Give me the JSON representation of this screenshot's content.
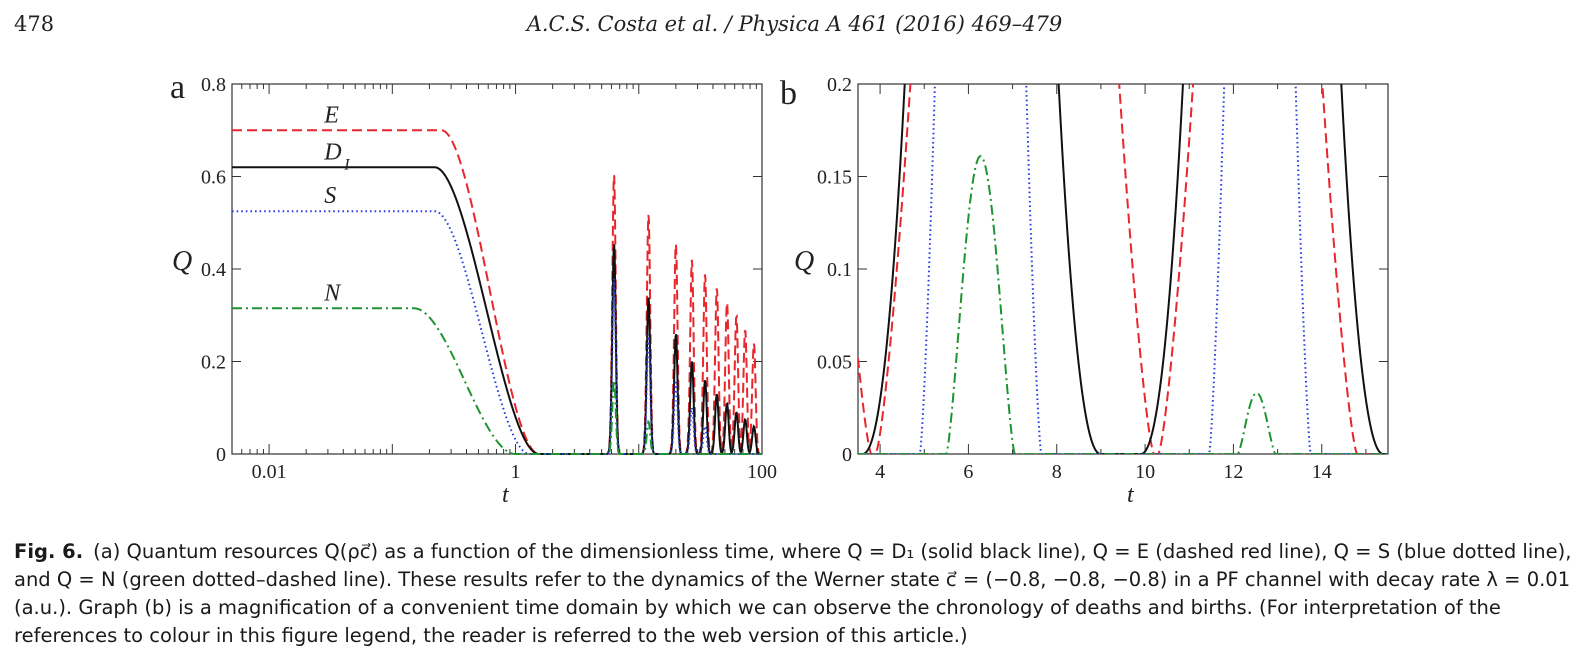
{
  "header": {
    "page_number": "478",
    "running_head": "A.C.S. Costa et al. / Physica A 461 (2016) 469–479"
  },
  "chart_data": [
    {
      "panel": "a",
      "type": "line",
      "xscale": "log",
      "xlabel": "t",
      "ylabel": "Q",
      "xlim": [
        0.005,
        100
      ],
      "ylim": [
        0,
        0.8
      ],
      "xticks": [
        0.01,
        1,
        100
      ],
      "xtick_labels": [
        "0.01",
        "1",
        "100"
      ],
      "yticks": [
        0,
        0.2,
        0.4,
        0.6,
        0.8
      ],
      "ytick_labels": [
        "0",
        "0.2",
        "0.4",
        "0.6",
        "0.8"
      ],
      "curve_labels": [
        "E",
        "D",
        "S",
        "N"
      ],
      "curve_label_subscript": "I",
      "series": [
        {
          "name": "E",
          "color": "#e8262b",
          "dash": "dashed",
          "plateau": 0.7,
          "peaks": [
            [
              6.3,
              0.605
            ],
            [
              12.0,
              0.52
            ],
            [
              20.0,
              0.455
            ],
            [
              27.0,
              0.42
            ],
            [
              34.5,
              0.39
            ],
            [
              43,
              0.36
            ],
            [
              52,
              0.33
            ],
            [
              62,
              0.3
            ],
            [
              73,
              0.27
            ],
            [
              86,
              0.24
            ]
          ]
        },
        {
          "name": "D1",
          "color": "#111111",
          "dash": "solid",
          "plateau": 0.62,
          "peaks": [
            [
              6.3,
              0.455
            ],
            [
              12.0,
              0.34
            ],
            [
              20.0,
              0.26
            ],
            [
              27.0,
              0.2
            ],
            [
              34.5,
              0.16
            ],
            [
              43,
              0.13
            ],
            [
              52,
              0.11
            ],
            [
              62,
              0.09
            ],
            [
              73,
              0.075
            ],
            [
              86,
              0.06
            ]
          ]
        },
        {
          "name": "S",
          "color": "#2b3ee0",
          "dash": "dotted",
          "plateau": 0.525,
          "peaks": [
            [
              6.3,
              0.38
            ],
            [
              12.0,
              0.26
            ],
            [
              20.0,
              0.16
            ],
            [
              27.0,
              0.1
            ],
            [
              34.5,
              0.06
            ]
          ]
        },
        {
          "name": "N",
          "color": "#1e9430",
          "dash": "dashdot",
          "plateau": 0.315,
          "peaks": [
            [
              6.3,
              0.16
            ],
            [
              12.0,
              0.07
            ]
          ]
        }
      ]
    },
    {
      "panel": "b",
      "type": "line",
      "xlabel": "t",
      "ylabel": "Q",
      "xlim": [
        3.5,
        15.5
      ],
      "ylim": [
        0,
        0.2
      ],
      "xticks": [
        4,
        6,
        8,
        10,
        12,
        14
      ],
      "xtick_labels": [
        "4",
        "6",
        "8",
        "10",
        "12",
        "14"
      ],
      "yticks": [
        0,
        0.05,
        0.1,
        0.15,
        0.2
      ],
      "ytick_labels": [
        "0",
        "0.05",
        "0.1",
        "0.15",
        "0.2"
      ],
      "series": [
        {
          "name": "E",
          "color": "#e8262b",
          "dash": "dashed",
          "zeros": [
            [
              3.8,
              3.9
            ],
            [
              10.2,
              10.3
            ],
            [
              14.8,
              15.5
            ]
          ],
          "peak_centers": [
            6.3,
            12.5
          ]
        },
        {
          "name": "D1",
          "color": "#111111",
          "dash": "solid",
          "zeros": [
            [
              3.5,
              3.6
            ],
            [
              9.0,
              9.9
            ],
            [
              15.4,
              15.5
            ]
          ],
          "peak_centers": [
            6.3,
            12.5
          ]
        },
        {
          "name": "S",
          "color": "#2b3ee0",
          "dash": "dotted",
          "zeros": [
            [
              3.5,
              4.9
            ],
            [
              7.65,
              11.45
            ],
            [
              13.75,
              15.5
            ]
          ],
          "peak_centers": [
            6.3,
            12.5
          ]
        },
        {
          "name": "N",
          "color": "#1e9430",
          "dash": "dashdot",
          "zeros": [
            [
              3.5,
              5.5
            ],
            [
              7.05,
              12.1
            ],
            [
              12.95,
              15.5
            ]
          ],
          "peaks": [
            [
              6.25,
              0.161
            ],
            [
              12.52,
              0.033
            ]
          ]
        }
      ]
    }
  ],
  "caption": {
    "label": "Fig. 6.",
    "text": "(a) Quantum resources Q(ρc⃗) as a function of the dimensionless time, where Q = D₁ (solid black line), Q = E (dashed red line), Q = S (blue dotted line), and Q = N (green dotted–dashed line). These results refer to the dynamics of the Werner state c⃗ = (−0.8, −0.8, −0.8) in a PF channel with decay rate λ = 0.01 (a.u.). Graph (b) is a magnification of a convenient time domain by which we can observe the chronology of deaths and births. (For interpretation of the references to colour in this figure legend, the reader is referred to the web version of this article.)"
  }
}
